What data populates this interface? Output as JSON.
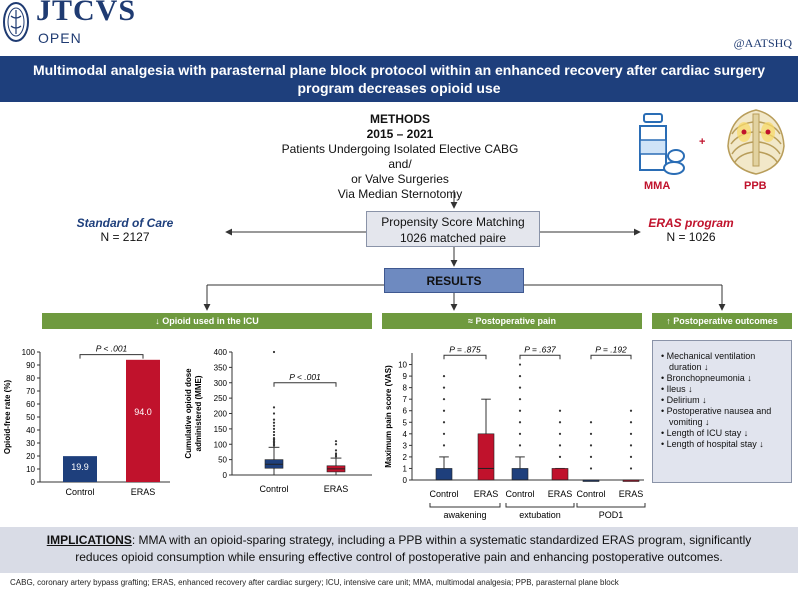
{
  "header": {
    "journal": "JTCVS",
    "journal_sub": "OPEN",
    "handle": "@AATSHQ"
  },
  "title": {
    "line1": "Multimodal analgesia with parasternal plane block protocol within an enhanced recovery after cardiac surgery",
    "line2": "program decreases opioid use"
  },
  "methods": {
    "heading": "METHODS",
    "years": "2015 – 2021",
    "line1": "Patients Undergoing Isolated Elective CABG and/",
    "line2": "or Valve Surgeries",
    "line3": "Via Median Sternotomy"
  },
  "groups": {
    "soc_title": "Standard of Care",
    "soc_n": "N = 2127",
    "eras_title": "ERAS program",
    "eras_n": "N = 1026"
  },
  "psm": {
    "line1": "Propensity Score Matching",
    "line2": "1026 matched paire"
  },
  "results_label": "RESULTS",
  "interventions": {
    "plus": "+",
    "mma": "MMA",
    "ppb": "PPB"
  },
  "sections": {
    "opioid": "↓ Opioid used in the ICU",
    "pain": "≈ Postoperative pain",
    "outcomes": "↑ Postoperative outcomes"
  },
  "outcomes_list": [
    "• Mechanical ventilation duration ↓",
    "• Bronchopneumonia ↓",
    "• Ileus ↓",
    "• Delirium ↓",
    "• Postoperative nausea and vomiting ↓",
    "• Length of ICU stay ↓",
    "• Length of hospital stay ↓"
  ],
  "chart_data": [
    {
      "type": "bar",
      "title": "",
      "ylabel": "Opioid-free rate (%)",
      "categories": [
        "Control",
        "ERAS"
      ],
      "values": [
        19.9,
        94.0
      ],
      "value_labels": [
        "19.9",
        "94.0"
      ],
      "colors": [
        "#1e3f7c",
        "#c0122c"
      ],
      "ylim": [
        0,
        100
      ],
      "yticks": [
        "0",
        "10",
        "20",
        "30",
        "40",
        "50",
        "60",
        "70",
        "80",
        "90",
        "100"
      ],
      "annotation": "P < .001"
    },
    {
      "type": "box",
      "ylabel": "Cumulative opioid dose administered (MME)",
      "ylabel_line1": "Cumulative opioid dose",
      "ylabel_line2": "administered (MME)",
      "categories": [
        "Control",
        "ERAS"
      ],
      "ylim": [
        0,
        400
      ],
      "yticks": [
        "0",
        "50",
        "100",
        "150",
        "200",
        "250",
        "300",
        "350",
        "400"
      ],
      "boxes": [
        {
          "q1": 22,
          "median": 35,
          "q3": 50,
          "whisker_low": 0,
          "whisker_high": 90,
          "outliers": [
            95,
            100,
            105,
            110,
            115,
            120,
            130,
            140,
            150,
            160,
            170,
            180,
            200,
            220,
            400
          ]
        },
        {
          "q1": 10,
          "median": 20,
          "q3": 30,
          "whisker_low": 0,
          "whisker_high": 55,
          "outliers": [
            60,
            65,
            70,
            80,
            100,
            110
          ]
        }
      ],
      "colors": [
        "#1e3f7c",
        "#c0122c"
      ],
      "annotation": "P < .001"
    },
    {
      "type": "box",
      "ylabel": "Maximum pain score (VAS)",
      "ylim": [
        0,
        11
      ],
      "yticks": [
        "0",
        "1",
        "2",
        "3",
        "4",
        "5",
        "6",
        "7",
        "8",
        "9",
        "10"
      ],
      "groups": [
        {
          "label": "awakening",
          "p": "P = .875",
          "categories": [
            "Control",
            "ERAS"
          ],
          "boxes": [
            {
              "q1": 0,
              "median": 0,
              "q3": 1,
              "whisker_low": 0,
              "whisker_high": 2,
              "outliers": [
                3,
                4,
                5,
                6,
                7,
                8,
                9
              ]
            },
            {
              "q1": 0,
              "median": 1,
              "q3": 4,
              "whisker_low": 0,
              "whisker_high": 7,
              "outliers": []
            }
          ]
        },
        {
          "label": "extubation",
          "p": "P = .637",
          "categories": [
            "Control",
            "ERAS"
          ],
          "boxes": [
            {
              "q1": 0,
              "median": 0,
              "q3": 1,
              "whisker_low": 0,
              "whisker_high": 2,
              "outliers": [
                3,
                4,
                5,
                6,
                7,
                8,
                9,
                10
              ]
            },
            {
              "q1": 0,
              "median": 0,
              "q3": 1,
              "whisker_low": 0,
              "whisker_high": 1,
              "outliers": [
                2,
                3,
                4,
                5,
                6
              ]
            }
          ]
        },
        {
          "label": "POD1",
          "p": "P = .192",
          "categories": [
            "Control",
            "ERAS"
          ],
          "boxes": [
            {
              "q1": 0,
              "median": 0,
              "q3": 0,
              "whisker_low": 0,
              "whisker_high": 0,
              "outliers": [
                1,
                2,
                3,
                4,
                5
              ]
            },
            {
              "q1": 0,
              "median": 0,
              "q3": 0,
              "whisker_low": 0,
              "whisker_high": 0,
              "outliers": [
                1,
                2,
                3,
                4,
                5,
                6
              ]
            }
          ]
        }
      ],
      "colors": [
        "#1e3f7c",
        "#c0122c"
      ]
    }
  ],
  "implications": {
    "key": "IMPLICATIONS",
    "text1": ": MMA with an opioid-sparing strategy, including a PPB within a systematic standardized ERAS program, significantly",
    "text2": "reduces opioid consumption while ensuring effective control of postoperative pain and enhancing postoperative outcomes."
  },
  "footnote": "CABG, coronary artery bypass grafting; ERAS, enhanced recovery after cardiac surgery; ICU, intensive care unit; MMA, multimodal analgesia; PPB, parasternal plane block"
}
